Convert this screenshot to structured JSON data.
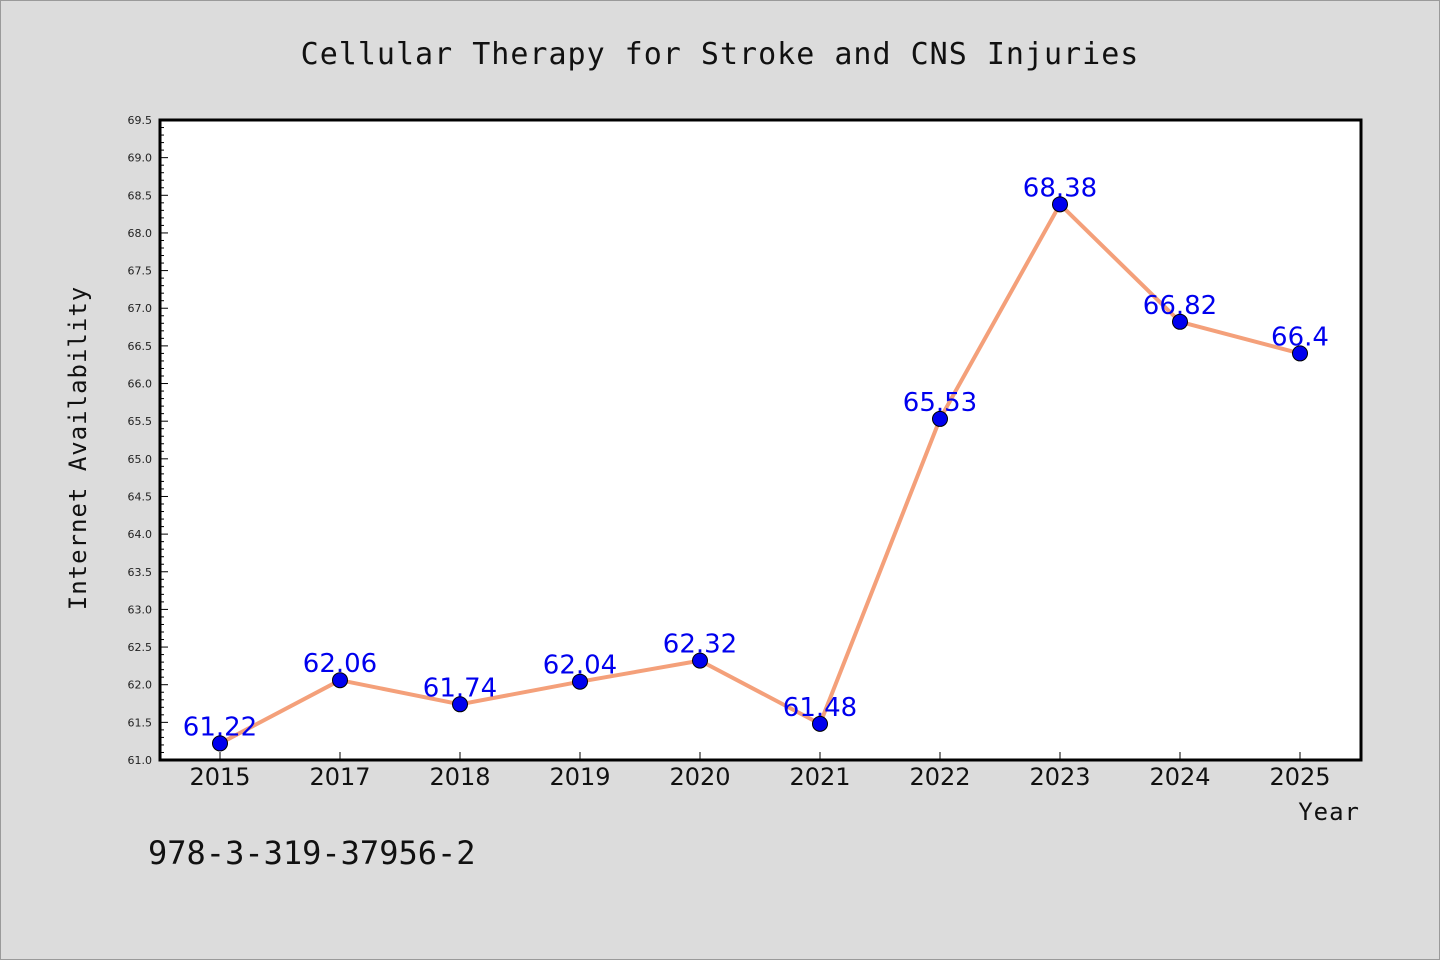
{
  "chart_data": {
    "type": "line",
    "title": "Cellular Therapy for Stroke and CNS Injuries",
    "xlabel": "Year",
    "ylabel": "Internet Availability",
    "categories": [
      "2015",
      "2017",
      "2018",
      "2019",
      "2020",
      "2021",
      "2022",
      "2023",
      "2024",
      "2025"
    ],
    "series": [
      {
        "values": [
          61.22,
          62.06,
          61.74,
          62.04,
          62.32,
          61.48,
          65.53,
          68.38,
          66.82,
          66.4
        ],
        "labels": [
          "61.22",
          "62.06",
          "61.74",
          "62.04",
          "62.32",
          "61.48",
          "65.53",
          "68.38",
          "66.82",
          "66.4"
        ],
        "line_color": "#f4a07a",
        "marker_color": "#0000ee"
      }
    ],
    "ylim": [
      61.0,
      69.5
    ],
    "yticks": [
      "61.0",
      "61.5",
      "62.0",
      "62.5",
      "63.0",
      "63.5",
      "64.0",
      "64.5",
      "65.0",
      "65.5",
      "66.0",
      "66.5",
      "67.0",
      "67.5",
      "68.0",
      "68.5",
      "69.0",
      "69.5"
    ],
    "grid": false,
    "legend": "none"
  },
  "footer": {
    "isbn": "978-3-319-37956-2"
  },
  "colors": {
    "background": "#dcdcdc",
    "plot_background": "#ffffff",
    "line": "#f4a07a",
    "marker": "#0000ee",
    "data_label": "#0000ee"
  }
}
